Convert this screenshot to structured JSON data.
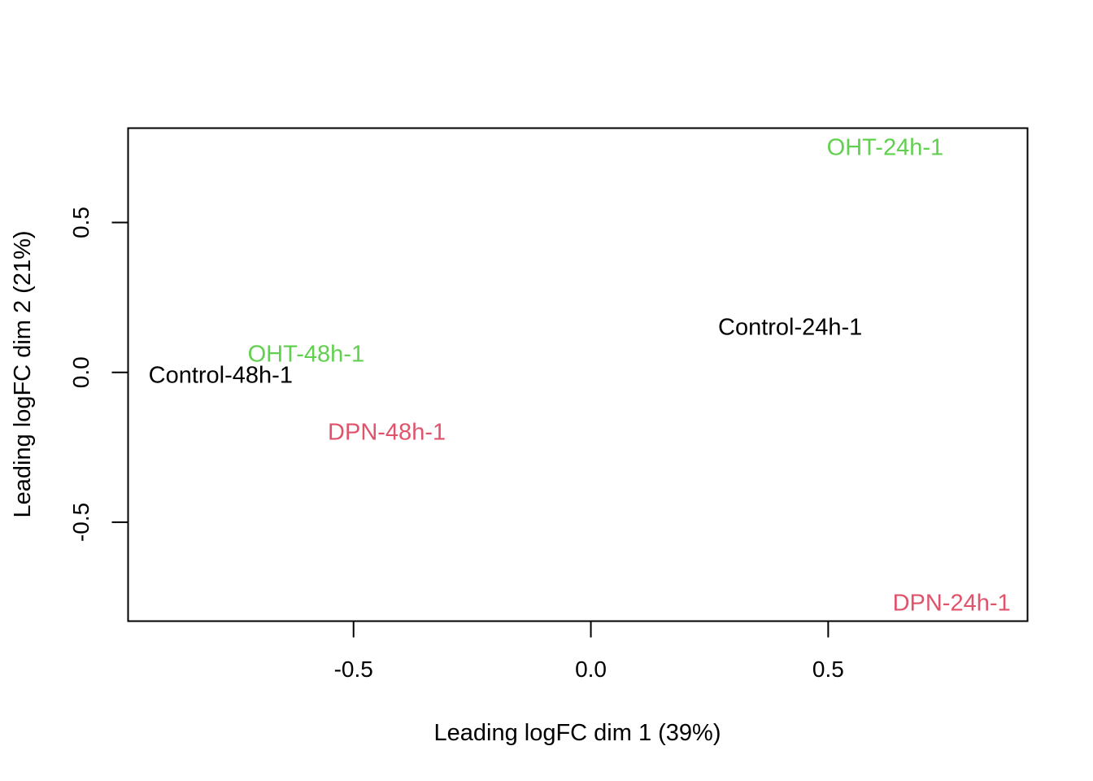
{
  "chart_data": {
    "type": "scatter",
    "title": "",
    "xlabel": "Leading logFC dim 1 (39%)",
    "ylabel": "Leading logFC dim 2 (21%)",
    "xlim": [
      -0.975,
      0.92
    ],
    "ylim": [
      -0.83,
      0.815
    ],
    "x_ticks": [
      {
        "value": -0.5,
        "label": "-0.5"
      },
      {
        "value": 0.0,
        "label": "0.0"
      },
      {
        "value": 0.5,
        "label": "0.5"
      }
    ],
    "y_ticks": [
      {
        "value": 0.5,
        "label": "0.5"
      },
      {
        "value": 0.0,
        "label": "0.0"
      },
      {
        "value": -0.5,
        "label": "-0.5"
      }
    ],
    "grid": false,
    "legend": "none",
    "colors": {
      "Control": "#000000",
      "DPN": "#DF536B",
      "OHT": "#61D04F"
    },
    "points": [
      {
        "label": "Control-24h-1",
        "group": "Control",
        "x": 0.42,
        "y": 0.15
      },
      {
        "label": "Control-48h-1",
        "group": "Control",
        "x": -0.78,
        "y": -0.01
      },
      {
        "label": "DPN-24h-1",
        "group": "DPN",
        "x": 0.76,
        "y": -0.77
      },
      {
        "label": "DPN-48h-1",
        "group": "DPN",
        "x": -0.43,
        "y": -0.2
      },
      {
        "label": "OHT-24h-1",
        "group": "OHT",
        "x": 0.62,
        "y": 0.75
      },
      {
        "label": "OHT-48h-1",
        "group": "OHT",
        "x": -0.6,
        "y": 0.06
      }
    ]
  }
}
